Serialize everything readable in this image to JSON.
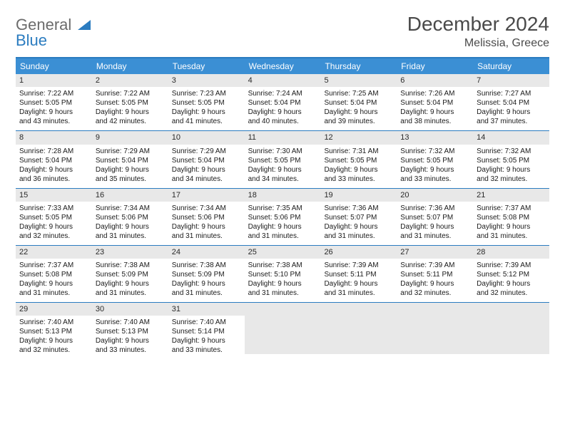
{
  "logo": {
    "word1": "General",
    "word2": "Blue"
  },
  "title": "December 2024",
  "location": "Melissia, Greece",
  "colors": {
    "header_bg": "#3b8fd4",
    "border": "#2b7cc0",
    "daynum_bg": "#e8e8e8",
    "text": "#1a1a1a",
    "title_text": "#4a4a4a",
    "logo_gray": "#6b6b6b",
    "logo_blue": "#2b7cc0"
  },
  "day_headers": [
    "Sunday",
    "Monday",
    "Tuesday",
    "Wednesday",
    "Thursday",
    "Friday",
    "Saturday"
  ],
  "weeks": [
    [
      {
        "n": "1",
        "sr": "Sunrise: 7:22 AM",
        "ss": "Sunset: 5:05 PM",
        "d1": "Daylight: 9 hours",
        "d2": "and 43 minutes."
      },
      {
        "n": "2",
        "sr": "Sunrise: 7:22 AM",
        "ss": "Sunset: 5:05 PM",
        "d1": "Daylight: 9 hours",
        "d2": "and 42 minutes."
      },
      {
        "n": "3",
        "sr": "Sunrise: 7:23 AM",
        "ss": "Sunset: 5:05 PM",
        "d1": "Daylight: 9 hours",
        "d2": "and 41 minutes."
      },
      {
        "n": "4",
        "sr": "Sunrise: 7:24 AM",
        "ss": "Sunset: 5:04 PM",
        "d1": "Daylight: 9 hours",
        "d2": "and 40 minutes."
      },
      {
        "n": "5",
        "sr": "Sunrise: 7:25 AM",
        "ss": "Sunset: 5:04 PM",
        "d1": "Daylight: 9 hours",
        "d2": "and 39 minutes."
      },
      {
        "n": "6",
        "sr": "Sunrise: 7:26 AM",
        "ss": "Sunset: 5:04 PM",
        "d1": "Daylight: 9 hours",
        "d2": "and 38 minutes."
      },
      {
        "n": "7",
        "sr": "Sunrise: 7:27 AM",
        "ss": "Sunset: 5:04 PM",
        "d1": "Daylight: 9 hours",
        "d2": "and 37 minutes."
      }
    ],
    [
      {
        "n": "8",
        "sr": "Sunrise: 7:28 AM",
        "ss": "Sunset: 5:04 PM",
        "d1": "Daylight: 9 hours",
        "d2": "and 36 minutes."
      },
      {
        "n": "9",
        "sr": "Sunrise: 7:29 AM",
        "ss": "Sunset: 5:04 PM",
        "d1": "Daylight: 9 hours",
        "d2": "and 35 minutes."
      },
      {
        "n": "10",
        "sr": "Sunrise: 7:29 AM",
        "ss": "Sunset: 5:04 PM",
        "d1": "Daylight: 9 hours",
        "d2": "and 34 minutes."
      },
      {
        "n": "11",
        "sr": "Sunrise: 7:30 AM",
        "ss": "Sunset: 5:05 PM",
        "d1": "Daylight: 9 hours",
        "d2": "and 34 minutes."
      },
      {
        "n": "12",
        "sr": "Sunrise: 7:31 AM",
        "ss": "Sunset: 5:05 PM",
        "d1": "Daylight: 9 hours",
        "d2": "and 33 minutes."
      },
      {
        "n": "13",
        "sr": "Sunrise: 7:32 AM",
        "ss": "Sunset: 5:05 PM",
        "d1": "Daylight: 9 hours",
        "d2": "and 33 minutes."
      },
      {
        "n": "14",
        "sr": "Sunrise: 7:32 AM",
        "ss": "Sunset: 5:05 PM",
        "d1": "Daylight: 9 hours",
        "d2": "and 32 minutes."
      }
    ],
    [
      {
        "n": "15",
        "sr": "Sunrise: 7:33 AM",
        "ss": "Sunset: 5:05 PM",
        "d1": "Daylight: 9 hours",
        "d2": "and 32 minutes."
      },
      {
        "n": "16",
        "sr": "Sunrise: 7:34 AM",
        "ss": "Sunset: 5:06 PM",
        "d1": "Daylight: 9 hours",
        "d2": "and 31 minutes."
      },
      {
        "n": "17",
        "sr": "Sunrise: 7:34 AM",
        "ss": "Sunset: 5:06 PM",
        "d1": "Daylight: 9 hours",
        "d2": "and 31 minutes."
      },
      {
        "n": "18",
        "sr": "Sunrise: 7:35 AM",
        "ss": "Sunset: 5:06 PM",
        "d1": "Daylight: 9 hours",
        "d2": "and 31 minutes."
      },
      {
        "n": "19",
        "sr": "Sunrise: 7:36 AM",
        "ss": "Sunset: 5:07 PM",
        "d1": "Daylight: 9 hours",
        "d2": "and 31 minutes."
      },
      {
        "n": "20",
        "sr": "Sunrise: 7:36 AM",
        "ss": "Sunset: 5:07 PM",
        "d1": "Daylight: 9 hours",
        "d2": "and 31 minutes."
      },
      {
        "n": "21",
        "sr": "Sunrise: 7:37 AM",
        "ss": "Sunset: 5:08 PM",
        "d1": "Daylight: 9 hours",
        "d2": "and 31 minutes."
      }
    ],
    [
      {
        "n": "22",
        "sr": "Sunrise: 7:37 AM",
        "ss": "Sunset: 5:08 PM",
        "d1": "Daylight: 9 hours",
        "d2": "and 31 minutes."
      },
      {
        "n": "23",
        "sr": "Sunrise: 7:38 AM",
        "ss": "Sunset: 5:09 PM",
        "d1": "Daylight: 9 hours",
        "d2": "and 31 minutes."
      },
      {
        "n": "24",
        "sr": "Sunrise: 7:38 AM",
        "ss": "Sunset: 5:09 PM",
        "d1": "Daylight: 9 hours",
        "d2": "and 31 minutes."
      },
      {
        "n": "25",
        "sr": "Sunrise: 7:38 AM",
        "ss": "Sunset: 5:10 PM",
        "d1": "Daylight: 9 hours",
        "d2": "and 31 minutes."
      },
      {
        "n": "26",
        "sr": "Sunrise: 7:39 AM",
        "ss": "Sunset: 5:11 PM",
        "d1": "Daylight: 9 hours",
        "d2": "and 31 minutes."
      },
      {
        "n": "27",
        "sr": "Sunrise: 7:39 AM",
        "ss": "Sunset: 5:11 PM",
        "d1": "Daylight: 9 hours",
        "d2": "and 32 minutes."
      },
      {
        "n": "28",
        "sr": "Sunrise: 7:39 AM",
        "ss": "Sunset: 5:12 PM",
        "d1": "Daylight: 9 hours",
        "d2": "and 32 minutes."
      }
    ],
    [
      {
        "n": "29",
        "sr": "Sunrise: 7:40 AM",
        "ss": "Sunset: 5:13 PM",
        "d1": "Daylight: 9 hours",
        "d2": "and 32 minutes."
      },
      {
        "n": "30",
        "sr": "Sunrise: 7:40 AM",
        "ss": "Sunset: 5:13 PM",
        "d1": "Daylight: 9 hours",
        "d2": "and 33 minutes."
      },
      {
        "n": "31",
        "sr": "Sunrise: 7:40 AM",
        "ss": "Sunset: 5:14 PM",
        "d1": "Daylight: 9 hours",
        "d2": "and 33 minutes."
      },
      null,
      null,
      null,
      null
    ]
  ]
}
